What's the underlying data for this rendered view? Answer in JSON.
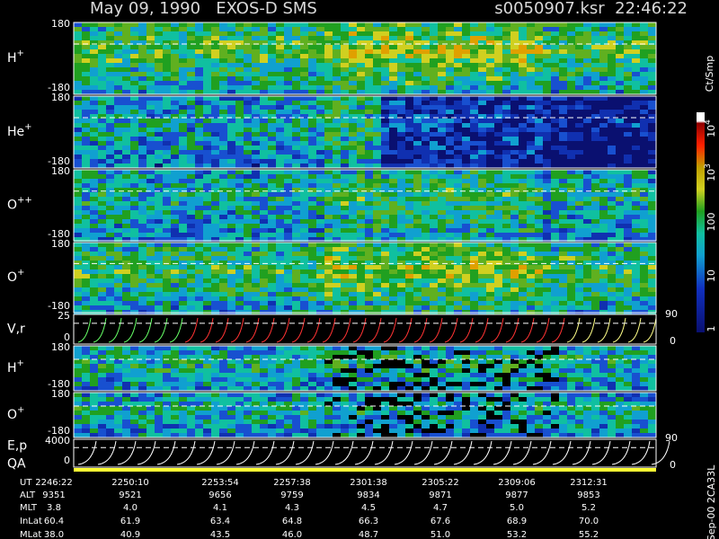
{
  "header": {
    "title": "May 09, 1990   EXOS-D SMS",
    "file": "s0050907.ksr  22:46:22"
  },
  "panels": [
    {
      "label": "H",
      "sup": "+",
      "top": "180",
      "bottom": "-180"
    },
    {
      "label": "He",
      "sup": "+",
      "top": "180",
      "bottom": "-180"
    },
    {
      "label": "O",
      "sup": "++",
      "top": "180",
      "bottom": "-180"
    },
    {
      "label": "O",
      "sup": "+",
      "top": "180",
      "bottom": "-180"
    },
    {
      "label": "V,r",
      "top": "25",
      "bottom": "0"
    },
    {
      "label": "H",
      "sup": "+",
      "top": "180",
      "bottom": "-180"
    },
    {
      "label": "O",
      "sup": "+",
      "top": "180",
      "bottom": "-180"
    },
    {
      "label": "E,p",
      "sub_label": "QA",
      "top": "4000",
      "bottom": "0"
    }
  ],
  "right_axis": [
    {
      "top": "90",
      "bottom": "0"
    },
    {
      "top": "90",
      "bottom": "0"
    }
  ],
  "colorbar": {
    "unit": "Ct/Smp",
    "ticks": [
      {
        "text": "10",
        "sup": "4"
      },
      {
        "text": "10",
        "sup": "3"
      },
      {
        "text": "100"
      },
      {
        "text": "10"
      },
      {
        "text": "1"
      }
    ]
  },
  "footer_code": "Sep-00 2CA33L",
  "ephemeris": {
    "rows": [
      {
        "label": "UT",
        "values": [
          "2246:22",
          "2250:10",
          "2253:54",
          "2257:38",
          "2301:38",
          "2305:22",
          "2309:06",
          "2312:31"
        ]
      },
      {
        "label": "ALT",
        "values": [
          "9351",
          "9521",
          "9656",
          "9759",
          "9834",
          "9871",
          "9877",
          "9853"
        ]
      },
      {
        "label": "MLT",
        "values": [
          "3.8",
          "4.0",
          "4.1",
          "4.3",
          "4.5",
          "4.7",
          "5.0",
          "5.2"
        ]
      },
      {
        "label": "InLat",
        "values": [
          "60.4",
          "61.9",
          "63.4",
          "64.8",
          "66.3",
          "67.6",
          "68.9",
          "70.0"
        ]
      },
      {
        "label": "MLat",
        "values": [
          "38.0",
          "40.9",
          "43.5",
          "46.0",
          "48.7",
          "51.0",
          "53.2",
          "55.2"
        ]
      }
    ]
  }
}
